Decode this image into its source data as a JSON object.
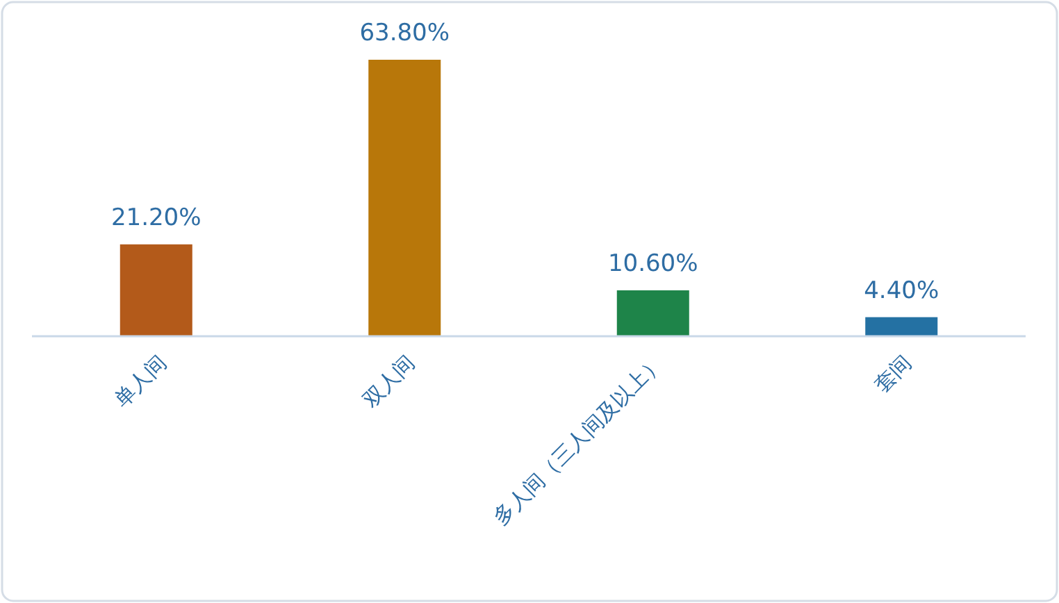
{
  "chart_data": {
    "type": "bar",
    "categories": [
      "单人间",
      "双人间",
      "多人间（三人间及以上）",
      "套间"
    ],
    "values": [
      21.2,
      63.8,
      10.6,
      4.4
    ],
    "colors": [
      "#b35a1a",
      "#b8770a",
      "#1e8449",
      "#2471a3"
    ],
    "value_labels": [
      "21.20%",
      "63.80%",
      "10.60%",
      "4.40%"
    ]
  }
}
